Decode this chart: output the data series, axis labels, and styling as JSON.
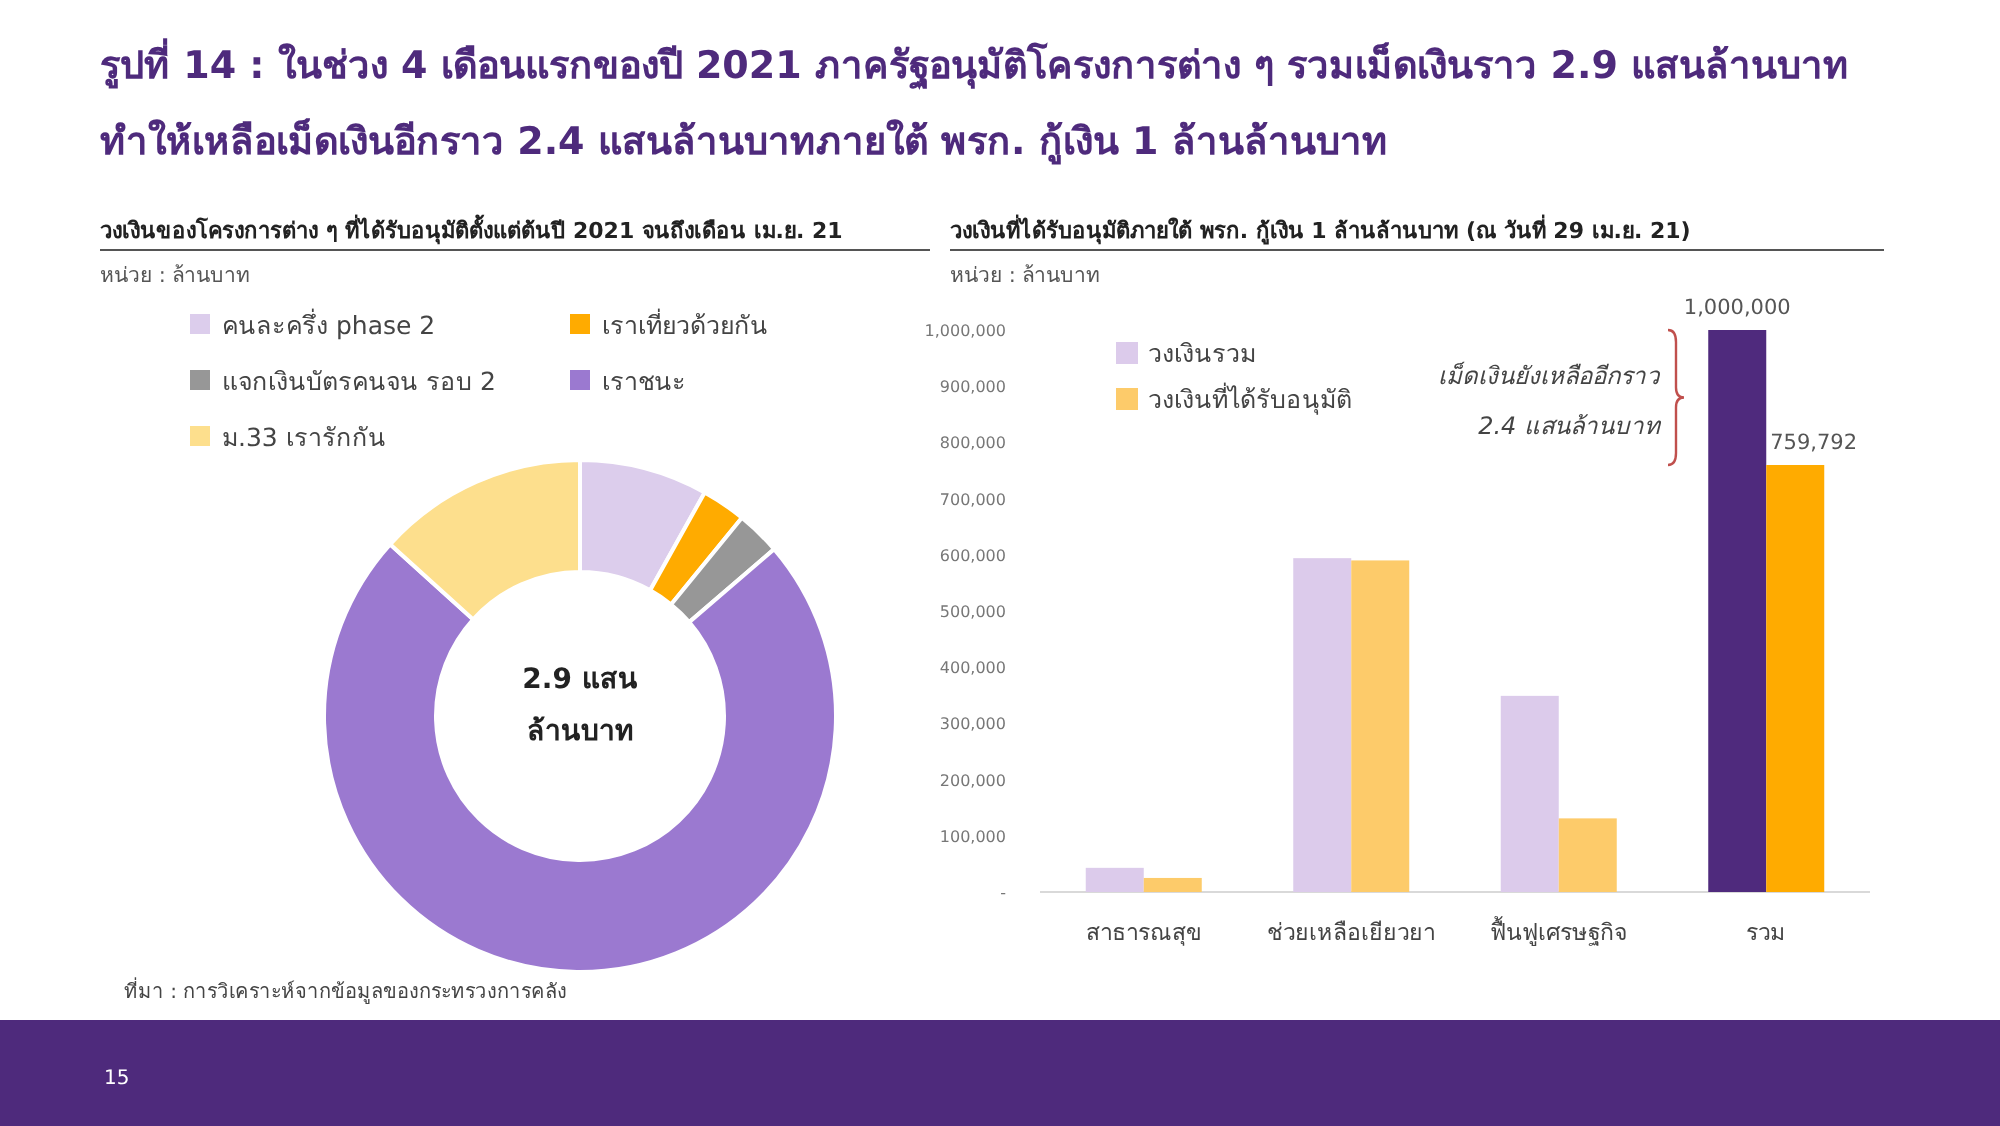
{
  "chart_data": [
    {
      "type": "donut",
      "title": "วงเงินของโครงการต่าง ๆ ที่ได้รับอนุมัติตั้งแต่ต้นปี 2021 จนถึงเดือน เม.ย. 21",
      "categories": [
        "คนละครึ่ง phase 2",
        "เราเที่ยวด้วยกัน",
        "แจกเงินบัตรคนจน รอบ 2",
        "เราชนะ",
        "ม.33 เรารักกัน"
      ],
      "values": [
        8.1,
        2.8,
        2.8,
        73,
        13.3
      ],
      "colors": [
        "#dccdec",
        "#ffab00",
        "#979797",
        "#9b79d0",
        "#fddf8d"
      ],
      "legend": "top",
      "annotations": [
        "รูปที่ 14 : ในช่วง 4 เดือนแรกของปี 2021 ภาครัฐอนุมัติโครงการต่าง ๆ รวมเม็ดเงินราว 2.9 แสนล้านบาท ทำให้เหลือเม็ดเงินอีกราว 2.4 แสนล้านบาทภายใต้ พรก. กู้เงิน 1 ล้านล้านบาท",
        "หน่วย : ล้านบาท",
        "2.9 แสน ล้านบาท",
        "ที่มา : การวิเคราะห์จากข้อมูลของกระทรวงการคลัง",
        "15"
      ]
    },
    {
      "type": "bar",
      "title": "วงเงินที่ได้รับอนุมัติภายใต้ พรก. กู้เงิน 1 ล้านล้านบาท (ณ วันที่ 29 เม.ย. 21)",
      "ylabel": "หน่วย : ล้านบาท",
      "categories": [
        "สาธารณสุข",
        "ช่วยเหลือเยียวยา",
        "ฟื้นฟูเศรษฐกิจ",
        "รวม"
      ],
      "series": [
        {
          "name": "วงเงินรวม",
          "color": "#dccbeb",
          "colors": [
            "#dccbeb",
            "#dccbeb",
            "#dccbeb",
            "#4f2a7d"
          ],
          "values": [
            43000,
            594000,
            349000,
            1000000
          ],
          "value_labels": [
            null,
            null,
            null,
            "1,000,000"
          ]
        },
        {
          "name": "วงเงินที่ได้รับอนุมัติ",
          "color": "#fdcb6a",
          "colors": [
            "#fdcb6a",
            "#fdcb6a",
            "#fdcb6a",
            "#ffab00"
          ],
          "values": [
            25000,
            590000,
            131000,
            759792
          ],
          "value_labels": [
            null,
            null,
            null,
            "759,792"
          ]
        }
      ],
      "ylim": [
        0,
        1000000
      ],
      "yticks": [
        {
          "value": 0,
          "label": "-"
        },
        {
          "value": 100000,
          "label": "100,000"
        },
        {
          "value": 200000,
          "label": "200,000"
        },
        {
          "value": 300000,
          "label": "300,000"
        },
        {
          "value": 400000,
          "label": "400,000"
        },
        {
          "value": 500000,
          "label": "500,000"
        },
        {
          "value": 600000,
          "label": "600,000"
        },
        {
          "value": 700000,
          "label": "700,000"
        },
        {
          "value": 800000,
          "label": "800,000"
        },
        {
          "value": 900000,
          "label": "900,000"
        },
        {
          "value": 1000000,
          "label": "1,000,000"
        }
      ],
      "legend": "top left",
      "annotations": [
        "เม็ดเงินยังเหลืออีกราว 2.4 แสนล้านบาท"
      ]
    }
  ]
}
